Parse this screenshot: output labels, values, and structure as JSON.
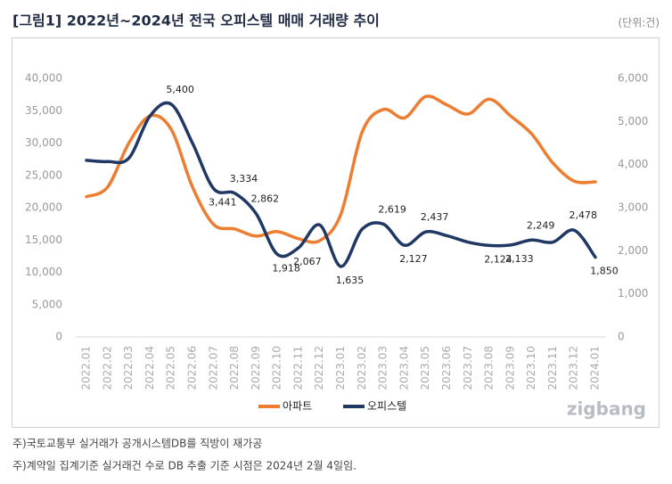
{
  "chart_data": {
    "type": "line",
    "title": "[그림1] 2022년~2024년 전국 오피스텔 매매 거래량 추이",
    "unit_label": "(단위:건)",
    "categories": [
      "2022.01",
      "2022.02",
      "2022.03",
      "2022.04",
      "2022.05",
      "2022.06",
      "2022.07",
      "2022.08",
      "2022.09",
      "2022.10",
      "2022.11",
      "2022.12",
      "2023.01",
      "2023.02",
      "2023.03",
      "2023.04",
      "2023.05",
      "2023.06",
      "2023.07",
      "2023.08",
      "2023.09",
      "2023.10",
      "2023.11",
      "2023.12",
      "2024.01"
    ],
    "series": [
      {
        "name": "아파트",
        "color": "#ed7d31",
        "axis": "y",
        "values": [
          21700,
          23200,
          30000,
          34200,
          32100,
          23200,
          17400,
          16700,
          15600,
          16300,
          15200,
          14900,
          19000,
          31700,
          35200,
          33900,
          37200,
          35900,
          34500,
          36800,
          34200,
          31400,
          26900,
          24100,
          24000
        ]
      },
      {
        "name": "오피스텔",
        "color": "#203864",
        "axis": "y2",
        "values": [
          4100,
          4070,
          4150,
          5130,
          5400,
          4500,
          3441,
          3334,
          2862,
          1918,
          2067,
          2600,
          1635,
          2500,
          2619,
          2127,
          2437,
          2350,
          2200,
          2124,
          2133,
          2249,
          2200,
          2478,
          1850
        ],
        "value_labels": [
          null,
          null,
          null,
          null,
          "5,400",
          null,
          "3,441",
          "3,334",
          "2,862",
          "1,918",
          "2,067",
          null,
          "1,635",
          null,
          "2,619",
          "2,127",
          "2,437",
          null,
          null,
          "2,124",
          "2,133",
          "2,249",
          null,
          "2,478",
          "1,850"
        ]
      }
    ],
    "ylim": [
      0,
      40000
    ],
    "yticks": [
      0,
      {
        "value": 5000,
        "label": "5,000"
      },
      {
        "value": 10000,
        "label": "10,000"
      },
      {
        "value": 15000,
        "label": "15,000"
      },
      {
        "value": 20000,
        "label": "20,000"
      },
      {
        "value": 25000,
        "label": "25,000"
      },
      {
        "value": 30000,
        "label": "30,000"
      },
      {
        "value": 35000,
        "label": "35,000"
      },
      {
        "value": 40000,
        "label": "40,000"
      }
    ],
    "y2lim": [
      0,
      6000
    ],
    "y2ticks": [
      0,
      {
        "value": 1000,
        "label": "1,000"
      },
      {
        "value": 2000,
        "label": "2,000"
      },
      {
        "value": 3000,
        "label": "3,000"
      },
      {
        "value": 4000,
        "label": "4,000"
      },
      {
        "value": 5000,
        "label": "5,000"
      },
      {
        "value": 6000,
        "label": "6,000"
      }
    ],
    "grid": false,
    "legend": "bottom"
  },
  "logo": "zigbang",
  "notes": [
    "주)국토교통부 실거래가 공개시스템DB를 직방이 재가공",
    "주)계약일 집계기준 실거래건 수로 DB 추출 기준 시점은 2024년 2월 4일임."
  ]
}
